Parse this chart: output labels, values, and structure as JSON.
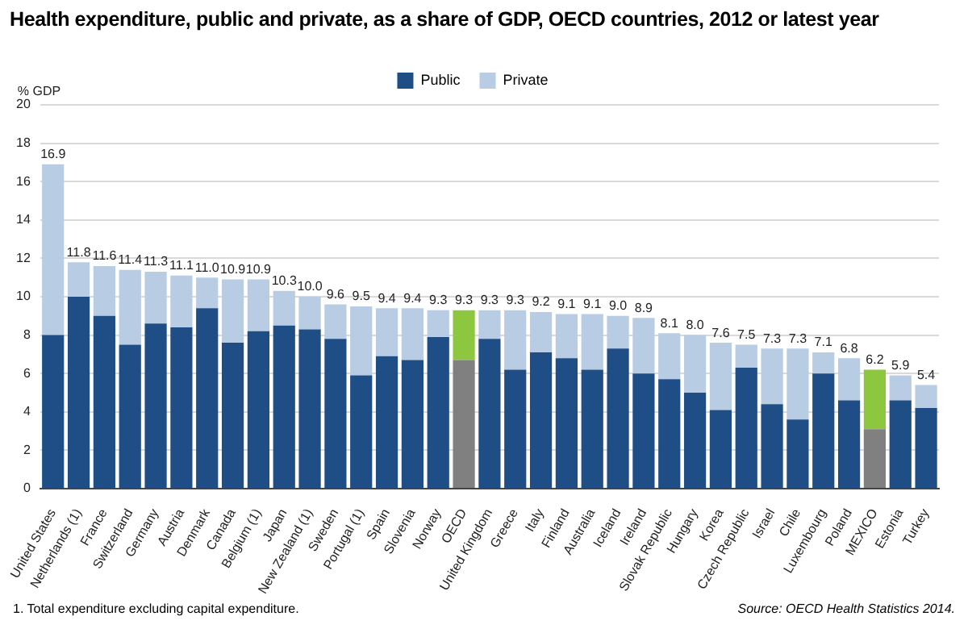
{
  "chart_data": {
    "type": "bar",
    "stacked": true,
    "title": "Health expenditure, public and private, as a share of GDP, OECD countries, 2012 or latest year",
    "ylabel": "% GDP",
    "categories": [
      "United States",
      "Netherlands (1)",
      "France",
      "Switzerland",
      "Germany",
      "Austria",
      "Denmark",
      "Canada",
      "Belgium (1)",
      "Japan",
      "New Zealand (1)",
      "Sweden",
      "Portugal (1)",
      "Spain",
      "Slovenia",
      "Norway",
      "OECD",
      "United Kingdom",
      "Greece",
      "Italy",
      "Finland",
      "Australia",
      "Iceland",
      "Ireland",
      "Slovak Republic",
      "Hungary",
      "Korea",
      "Czech Republic",
      "Israel",
      "Chile",
      "Luxembourg",
      "Poland",
      "MEXICO",
      "Estonia",
      "Turkey"
    ],
    "series": [
      {
        "name": "Public",
        "color": "#1f4e87",
        "colors": [
          "#1f4e87",
          "#1f4e87",
          "#1f4e87",
          "#1f4e87",
          "#1f4e87",
          "#1f4e87",
          "#1f4e87",
          "#1f4e87",
          "#1f4e87",
          "#1f4e87",
          "#1f4e87",
          "#1f4e87",
          "#1f4e87",
          "#1f4e87",
          "#1f4e87",
          "#1f4e87",
          "#808080",
          "#1f4e87",
          "#1f4e87",
          "#1f4e87",
          "#1f4e87",
          "#1f4e87",
          "#1f4e87",
          "#1f4e87",
          "#1f4e87",
          "#1f4e87",
          "#1f4e87",
          "#1f4e87",
          "#1f4e87",
          "#1f4e87",
          "#1f4e87",
          "#1f4e87",
          "#808080",
          "#1f4e87",
          "#1f4e87"
        ],
        "values": [
          8.0,
          10.0,
          9.0,
          7.5,
          8.6,
          8.4,
          9.4,
          7.6,
          8.2,
          8.5,
          8.3,
          7.8,
          5.9,
          6.9,
          6.7,
          7.9,
          6.7,
          7.8,
          6.2,
          7.1,
          6.8,
          6.2,
          7.3,
          6.0,
          5.7,
          5.0,
          4.1,
          6.3,
          4.4,
          3.6,
          6.0,
          4.6,
          3.1,
          4.6,
          4.2
        ]
      },
      {
        "name": "Private",
        "color": "#b8cce4",
        "colors": [
          "#b8cce4",
          "#b8cce4",
          "#b8cce4",
          "#b8cce4",
          "#b8cce4",
          "#b8cce4",
          "#b8cce4",
          "#b8cce4",
          "#b8cce4",
          "#b8cce4",
          "#b8cce4",
          "#b8cce4",
          "#b8cce4",
          "#b8cce4",
          "#b8cce4",
          "#b8cce4",
          "#8dc63f",
          "#b8cce4",
          "#b8cce4",
          "#b8cce4",
          "#b8cce4",
          "#b8cce4",
          "#b8cce4",
          "#b8cce4",
          "#b8cce4",
          "#b8cce4",
          "#b8cce4",
          "#b8cce4",
          "#b8cce4",
          "#b8cce4",
          "#b8cce4",
          "#b8cce4",
          "#8dc63f",
          "#b8cce4",
          "#b8cce4"
        ],
        "values": [
          8.9,
          1.8,
          2.6,
          3.9,
          2.7,
          2.7,
          1.6,
          3.3,
          2.7,
          1.8,
          1.7,
          1.8,
          3.6,
          2.5,
          2.7,
          1.4,
          2.6,
          1.5,
          3.1,
          2.1,
          2.3,
          2.9,
          1.7,
          2.9,
          2.4,
          3.0,
          3.5,
          1.2,
          2.9,
          3.7,
          1.1,
          2.2,
          3.1,
          1.3,
          1.2
        ]
      }
    ],
    "totals": [
      "16.9",
      "11.8",
      "11.6",
      "11.4",
      "11.3",
      "11.1",
      "11.0",
      "10.9",
      "10.9",
      "10.3",
      "10.0",
      "9.6",
      "9.5",
      "9.4",
      "9.4",
      "9.3",
      "9.3",
      "9.3",
      "9.3",
      "9.2",
      "9.1",
      "9.1",
      "9.0",
      "8.9",
      "8.1",
      "8.0",
      "7.6",
      "7.5",
      "7.3",
      "7.3",
      "7.1",
      "6.8",
      "6.2",
      "5.9",
      "5.4"
    ],
    "ylim": [
      0,
      20
    ],
    "yticks": [
      0,
      2,
      4,
      6,
      8,
      10,
      12,
      14,
      16,
      18,
      20
    ],
    "grid": "y",
    "legend": "top",
    "annotations": [
      "1. Total expenditure excluding capital expenditure.",
      "Source: OECD Health Statistics 2014."
    ]
  }
}
